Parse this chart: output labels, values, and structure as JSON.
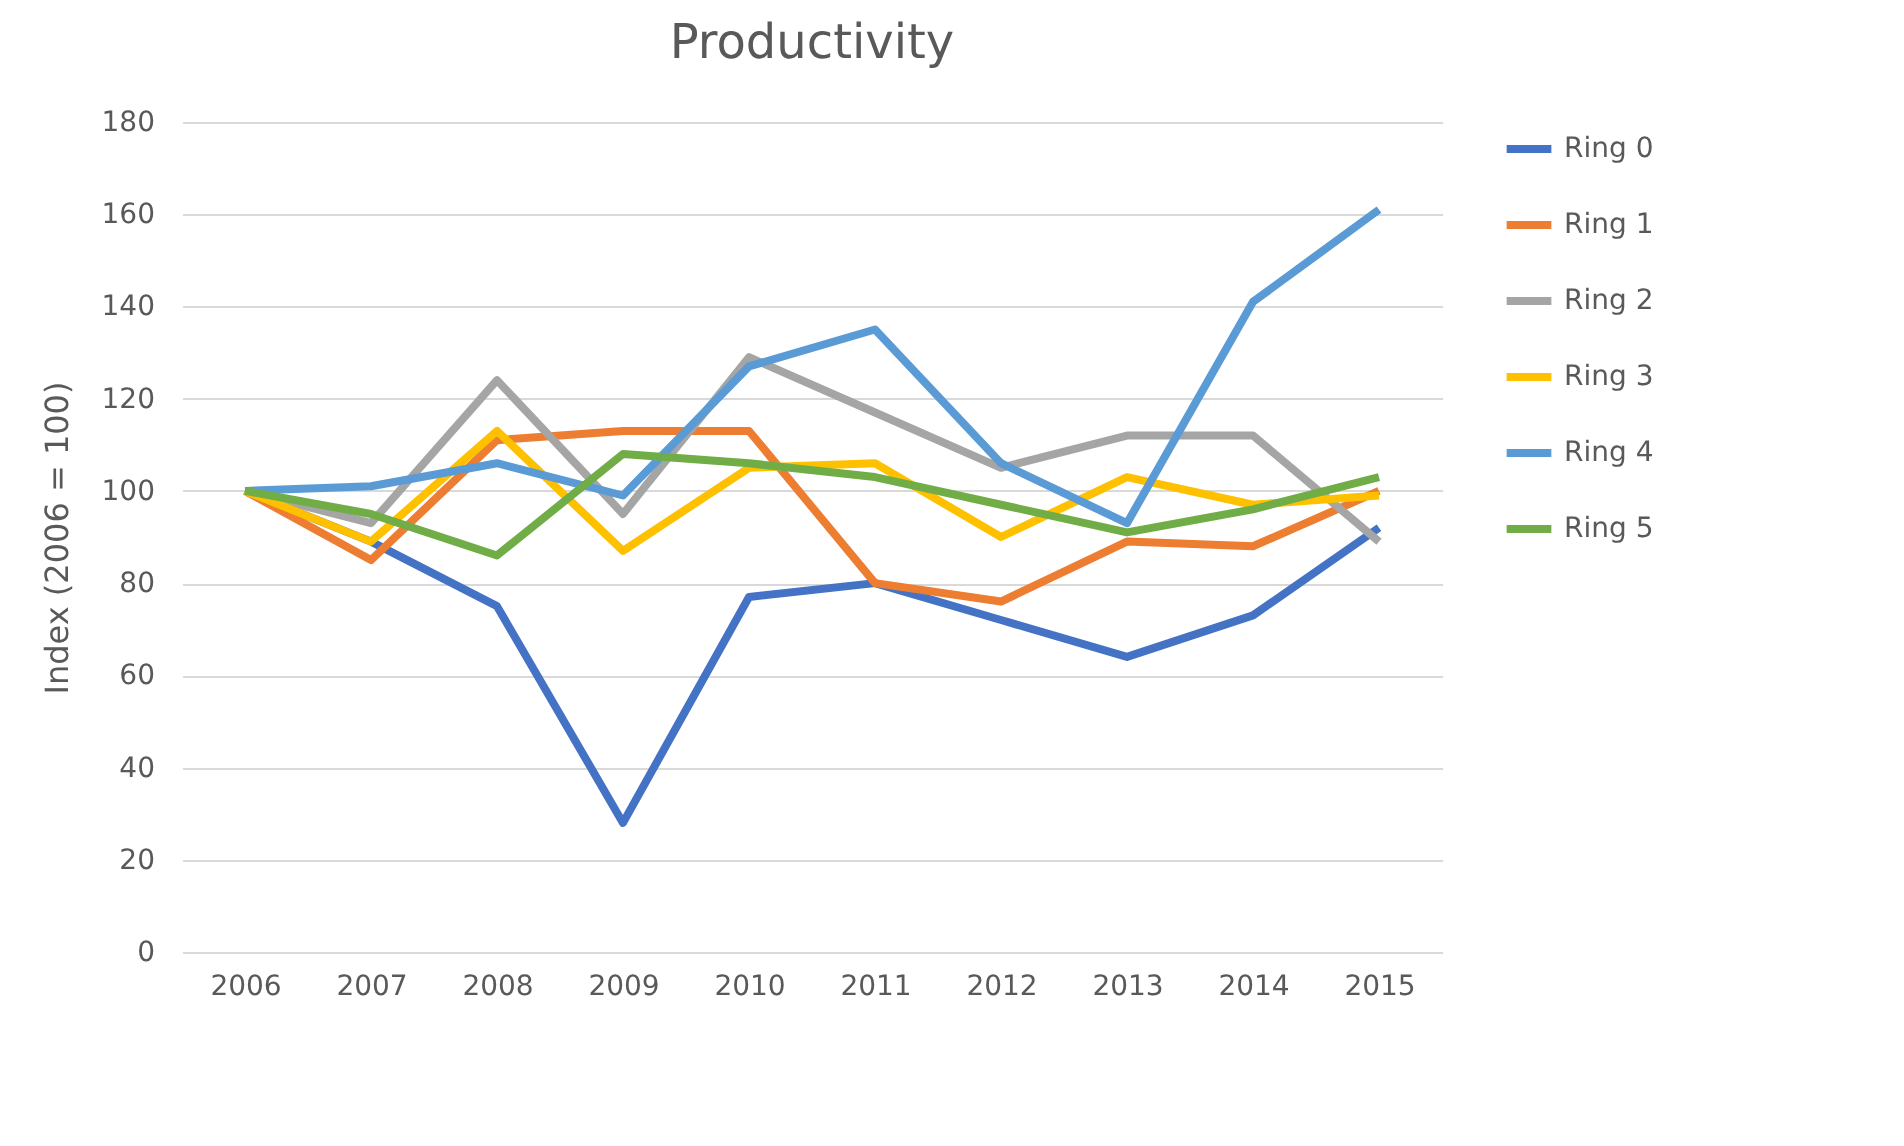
{
  "chart_data": {
    "type": "line",
    "title": "Productivity",
    "ylabel": "Index (2006 = 100)",
    "categories": [
      "2006",
      "2007",
      "2008",
      "2009",
      "2010",
      "2011",
      "2012",
      "2013",
      "2014",
      "2015"
    ],
    "series": [
      {
        "name": "Ring 0",
        "color": "#4472c4",
        "values": [
          100,
          89,
          75,
          28,
          77,
          80,
          72,
          64,
          73,
          92
        ]
      },
      {
        "name": "Ring 1",
        "color": "#ed7d31",
        "values": [
          100,
          85,
          111,
          113,
          113,
          80,
          76,
          89,
          88,
          100
        ]
      },
      {
        "name": "Ring 2",
        "color": "#a5a5a5",
        "values": [
          100,
          93,
          124,
          95,
          129,
          117,
          105,
          112,
          112,
          89
        ]
      },
      {
        "name": "Ring 3",
        "color": "#ffc000",
        "values": [
          100,
          89,
          113,
          87,
          105,
          106,
          90,
          103,
          97,
          99
        ]
      },
      {
        "name": "Ring 4",
        "color": "#5b9bd5",
        "values": [
          100,
          101,
          106,
          99,
          127,
          135,
          106,
          93,
          141,
          161
        ]
      },
      {
        "name": "Ring 5",
        "color": "#70ad47",
        "values": [
          100,
          95,
          86,
          108,
          106,
          103,
          97,
          91,
          96,
          103
        ]
      }
    ],
    "ylim": [
      0,
      180
    ],
    "yticks": [
      0,
      20,
      40,
      60,
      80,
      100,
      120,
      140,
      160,
      180
    ],
    "grid": "y",
    "legend": "right",
    "marker": "none",
    "line_style": "solid"
  }
}
